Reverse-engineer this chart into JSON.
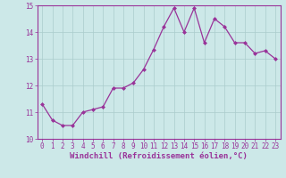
{
  "x": [
    0,
    1,
    2,
    3,
    4,
    5,
    6,
    7,
    8,
    9,
    10,
    11,
    12,
    13,
    14,
    15,
    16,
    17,
    18,
    19,
    20,
    21,
    22,
    23
  ],
  "y": [
    11.3,
    10.7,
    10.5,
    10.5,
    11.0,
    11.1,
    11.2,
    11.9,
    11.9,
    12.1,
    12.6,
    13.35,
    14.2,
    14.9,
    14.0,
    14.9,
    13.6,
    14.5,
    14.2,
    13.6,
    13.6,
    13.2,
    13.3,
    13.0
  ],
  "line_color": "#993399",
  "marker": "D",
  "marker_size": 2,
  "bg_color": "#cce8e8",
  "grid_color": "#aacccc",
  "xlabel": "Windchill (Refroidissement éolien,°C)",
  "ylim": [
    10,
    15
  ],
  "xlim_min": -0.5,
  "xlim_max": 23.5,
  "yticks": [
    10,
    11,
    12,
    13,
    14,
    15
  ],
  "xticks": [
    0,
    1,
    2,
    3,
    4,
    5,
    6,
    7,
    8,
    9,
    10,
    11,
    12,
    13,
    14,
    15,
    16,
    17,
    18,
    19,
    20,
    21,
    22,
    23
  ],
  "tick_label_size": 5.5,
  "xlabel_size": 6.5,
  "label_color": "#993399",
  "spine_color": "#993399"
}
